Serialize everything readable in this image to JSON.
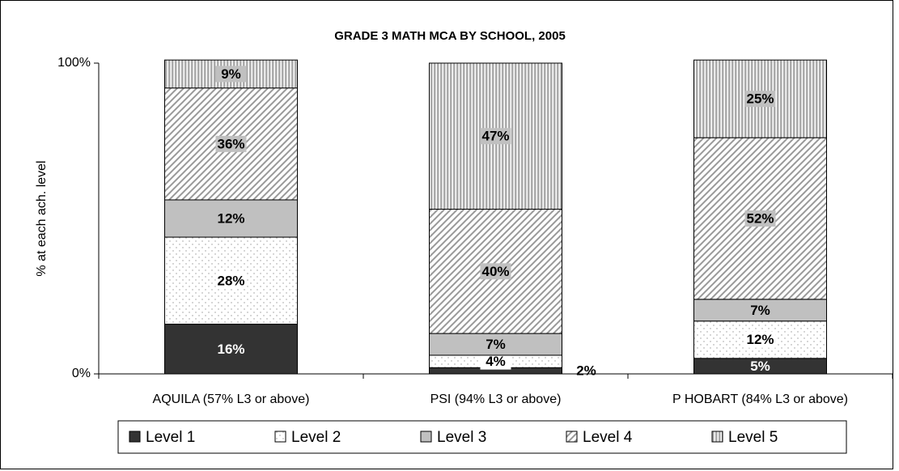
{
  "chart_data": {
    "type": "stacked_bar",
    "title": "GRADE 3 MATH MCA BY SCHOOL, 2005",
    "y_label": "% at each ach. level",
    "categories": [
      "AQUILA (57% L3 or above)",
      "PSI (94% L3 or above)",
      "P HOBART (84% L3 or above)"
    ],
    "series": [
      {
        "name": "Level 1",
        "color": "#333333",
        "pattern": "solid",
        "values": [
          16,
          2,
          5
        ],
        "value_labels": [
          "16%",
          "2%",
          "5%"
        ]
      },
      {
        "name": "Level 2",
        "color": "#ffffff",
        "pattern": "dots",
        "values": [
          28,
          4,
          12
        ],
        "value_labels": [
          "28%",
          "4%",
          "12%"
        ]
      },
      {
        "name": "Level 3",
        "color": "#c0c0c0",
        "pattern": "solid",
        "values": [
          12,
          7,
          7
        ],
        "value_labels": [
          "12%",
          "7%",
          "7%"
        ]
      },
      {
        "name": "Level 4",
        "color": "#c0c0c0",
        "pattern": "diagonal",
        "values": [
          36,
          40,
          52
        ],
        "value_labels": [
          "36%",
          "40%",
          "52%"
        ]
      },
      {
        "name": "Level 5",
        "color": "#c0c0c0",
        "pattern": "vertical",
        "values": [
          9,
          47,
          25
        ],
        "value_labels": [
          "9%",
          "47%",
          "25%"
        ]
      }
    ],
    "ylim": [
      0,
      100
    ],
    "yticks": [
      {
        "value": 0,
        "label": "0%"
      },
      {
        "value": 100,
        "label": "100%"
      }
    ],
    "legend": "bottom"
  }
}
